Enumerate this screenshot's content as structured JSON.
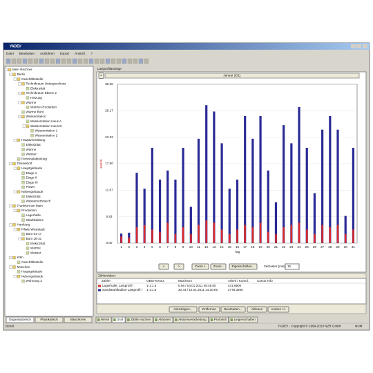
{
  "window": {
    "title": "YADEV",
    "menu": [
      "Datei",
      "Bearbeiten",
      "Ausführen",
      "Export",
      "Ansicht",
      "?"
    ]
  },
  "tree": {
    "label": "Mein Rechner",
    "children": [
      {
        "label": "Berlin",
        "children": [
          {
            "label": "Geschäftsstelle",
            "children": [
              {
                "label": "Technikraum Untergeschoss",
                "children": [
                  {
                    "label": "Elektrizität"
                  }
                ]
              },
              {
                "label": "Technikraum Ebene 2",
                "children": [
                  {
                    "label": "Heizung"
                  }
                ]
              },
              {
                "label": "Wärme",
                "children": [
                  {
                    "label": "Wärme Produktion"
                  }
                ]
              },
              {
                "label": "Wärme Büro"
              },
              {
                "label": "Wasserstation",
                "children": [
                  {
                    "label": "Wasserstation Haus A"
                  },
                  {
                    "label": "Wasserstation Haus B",
                    "children": [
                      {
                        "label": "Wasserstation 1"
                      },
                      {
                        "label": "Wasserstation 2"
                      }
                    ]
                  }
                ]
              }
            ]
          },
          {
            "label": "Hauptverwaltung",
            "children": [
              {
                "label": "Elektrizität"
              },
              {
                "label": "Wärme"
              },
              {
                "label": "Wasser"
              }
            ]
          },
          {
            "label": "Personalabteilung"
          }
        ]
      },
      {
        "label": "Düsseldorf",
        "children": [
          {
            "label": "Hauptgebäude",
            "children": [
              {
                "label": "Etage 1"
              },
              {
                "label": "Etage II"
              },
              {
                "label": "Etage III"
              },
              {
                "label": "Power"
              }
            ]
          },
          {
            "label": "Nebengebäude",
            "children": [
              {
                "label": "Elektrizität"
              },
              {
                "label": "Wasserverbrauch"
              }
            ]
          }
        ]
      },
      {
        "label": "Frankfurt am Main",
        "children": [
          {
            "label": "Produktion",
            "children": [
              {
                "label": "Lagerhalle"
              },
              {
                "label": "Strahlkabine"
              }
            ]
          }
        ]
      },
      {
        "label": "Hamburg",
        "children": [
          {
            "label": "Filiale Weststadt",
            "children": [
              {
                "label": "Büro 01-17"
              },
              {
                "label": "Büro 18-31",
                "children": [
                  {
                    "label": "Elektrizität"
                  },
                  {
                    "label": "Wärme"
                  },
                  {
                    "label": "Wasser"
                  }
                ]
              }
            ]
          }
        ]
      },
      {
        "label": "Köln",
        "children": [
          {
            "label": "Geschäftsstelle"
          }
        ]
      },
      {
        "label": "München",
        "children": [
          {
            "label": "Hauptgebäude"
          },
          {
            "label": "Nebengebäude",
            "children": [
              {
                "label": "Wohnung 2"
              }
            ]
          }
        ]
      }
    ]
  },
  "left_tabs": [
    "Organisatorisch",
    "Physikalisch",
    "Bilanzkreis"
  ],
  "panel_title": "Lastprofilanzeige",
  "chart_data": {
    "type": "bar",
    "title": "Januar 2011",
    "ylabel": "kWh/h",
    "xlabel": "Tag",
    "categories": [
      "1",
      "2",
      "3",
      "4",
      "5",
      "6",
      "7",
      "8",
      "9",
      "10",
      "11",
      "12",
      "13",
      "14",
      "15",
      "16",
      "17",
      "18",
      "19",
      "20",
      "21",
      "22",
      "23",
      "24",
      "25",
      "26",
      "27",
      "28",
      "29",
      "30",
      "31"
    ],
    "series": [
      {
        "color": "#2a2a96",
        "values": [
          2.1,
          2.3,
          15.5,
          12,
          21,
          14,
          16,
          14,
          21,
          8,
          23,
          30.4,
          29,
          22,
          12,
          14,
          28,
          23,
          28,
          16,
          9,
          26,
          22,
          30,
          21,
          11,
          25,
          28,
          25,
          6,
          21
        ]
      },
      {
        "color": "#e02a2a",
        "values": [
          1.5,
          1.2,
          3.5,
          4,
          3,
          2.5,
          4.5,
          2,
          3.5,
          2,
          4,
          5,
          4.5,
          3,
          2,
          3,
          4,
          3.5,
          4.5,
          2.5,
          2,
          3.5,
          4,
          4.5,
          3,
          2,
          4,
          3.5,
          4,
          2,
          3
        ]
      }
    ],
    "ylim": [
      0,
      35
    ],
    "yticks": [
      {
        "value": 0,
        "label": "0.00"
      },
      {
        "value": 5.83,
        "label": "5.83"
      },
      {
        "value": 11.67,
        "label": "11.67"
      },
      {
        "value": 17.5,
        "label": "17.50"
      },
      {
        "value": 23.33,
        "label": "23.33"
      },
      {
        "value": 29.17,
        "label": "29.17"
      },
      {
        "value": 35,
        "label": "35.00"
      }
    ],
    "grid": true
  },
  "controls": {
    "buttons": [
      "<",
      ">",
      "Zoom +",
      "Zoom -",
      "Eigenschaften..."
    ],
    "interval_label": "Zeitraster [min]:",
    "interval_value": "15"
  },
  "meters": {
    "title": "Zählerdaten:",
    "columns": [
      "Zähler",
      "OBIS-Kennz.",
      "Maximum",
      "Arbeit / Kumul.",
      "Cursor Info"
    ],
    "rows": [
      [
        "Lagerhalle; Lastprofil /",
        "1-1:1.5",
        "5.08 / 04.01.2011 08:45:00",
        "441.6900"
      ],
      [
        "Sandstrahlkabine Lastprofil /",
        "1-1:1.5",
        "30.44 / 12.01.2011 14:30:00",
        "2778.3300"
      ]
    ],
    "buttons": [
      "Hinzufügen...",
      "Entfernen",
      "Bearbeiten...",
      "Ablesen",
      "Andere >>"
    ]
  },
  "bottom_tabs": [
    "Werte",
    "Graf",
    "Zähler suchen",
    "Aktionen",
    "Aktionsverarbeitung",
    "Protokoll",
    "Liegenschaften"
  ],
  "status": {
    "left": "Bereit",
    "center": "YADEV - Copyright © 1999-2010 NZR GmbH",
    "right": "NUM"
  }
}
